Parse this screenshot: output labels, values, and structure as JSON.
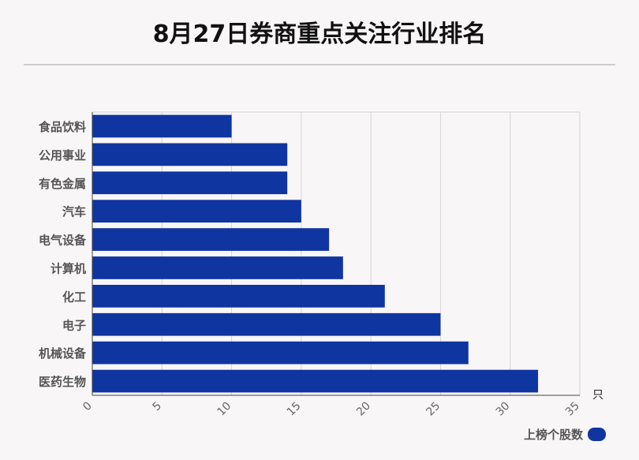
{
  "title": "8月27日券商重点关注行业排名",
  "chart_data": {
    "type": "bar",
    "orientation": "horizontal",
    "categories": [
      "食品饮料",
      "公用事业",
      "有色金属",
      "汽车",
      "电气设备",
      "计算机",
      "化工",
      "电子",
      "机械设备",
      "医药生物"
    ],
    "series": [
      {
        "name": "上榜个股数",
        "values": [
          10,
          14,
          14,
          15,
          17,
          18,
          21,
          25,
          27,
          32
        ],
        "color": "#0f35a0"
      }
    ],
    "xlim": [
      0,
      35
    ],
    "xticks": [
      "0",
      "5",
      "10",
      "15",
      "20",
      "25",
      "30",
      "35"
    ],
    "unit": "只",
    "grid": true,
    "legend_position": "bottom-right"
  },
  "legend": {
    "label": "上榜个股数"
  }
}
